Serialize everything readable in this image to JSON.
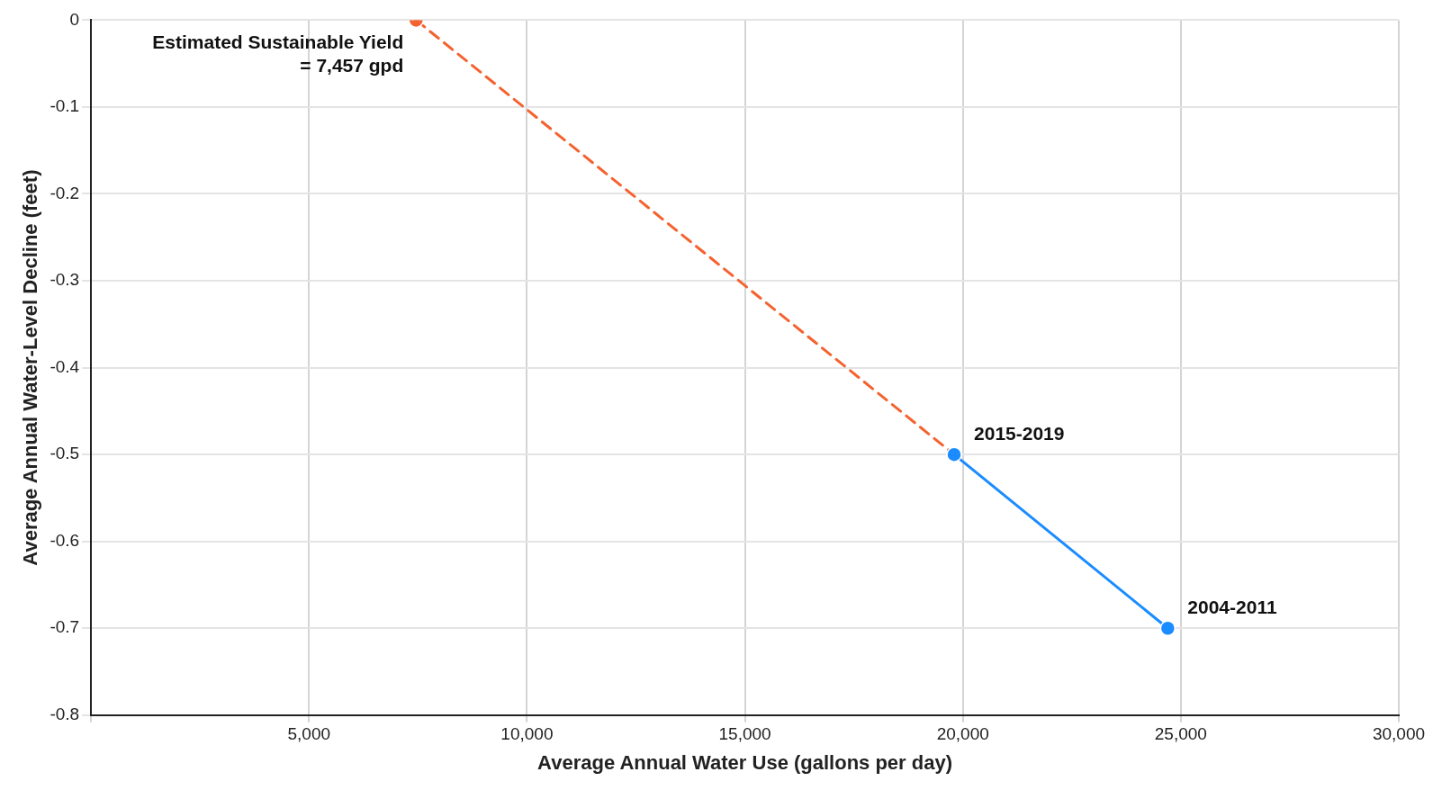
{
  "chart_data": {
    "type": "line",
    "xlabel": "Average Annual Water Use (gallons per day)",
    "ylabel": "Average Annual Water-Level Decline (feet)",
    "xlim": [
      0,
      30000
    ],
    "xticks": [
      {
        "value": 0,
        "label": null
      },
      {
        "value": 5000,
        "label": "5,000"
      },
      {
        "value": 10000,
        "label": "10,000"
      },
      {
        "value": 15000,
        "label": "15,000"
      },
      {
        "value": 20000,
        "label": "20,000"
      },
      {
        "value": 25000,
        "label": "25,000"
      },
      {
        "value": 30000,
        "label": "30,000"
      }
    ],
    "ylim": [
      -0.8,
      0
    ],
    "yticks": [
      0,
      -0.1,
      -0.2,
      -0.3,
      -0.4,
      -0.5,
      -0.6,
      -0.7,
      -0.8
    ],
    "series": [
      {
        "color": "#1a8cff",
        "x": [
          19800,
          24700
        ],
        "values": [
          -0.5,
          -0.7
        ],
        "line_style": "solid"
      },
      {
        "color": "#f4622f",
        "x": [
          7457,
          19800
        ],
        "values": [
          0,
          -0.5
        ],
        "line_style": "dashed"
      }
    ],
    "annotations": [
      {
        "text": "Estimated Sustainable Yield\n= 7,457 gpd",
        "x": 7457,
        "y": 0
      },
      {
        "text": "2015-2019",
        "x": 19800,
        "y": -0.5
      },
      {
        "text": "2004-2011",
        "x": 24700,
        "y": -0.7
      }
    ],
    "grid": true,
    "legend": false,
    "marker": "circle"
  }
}
